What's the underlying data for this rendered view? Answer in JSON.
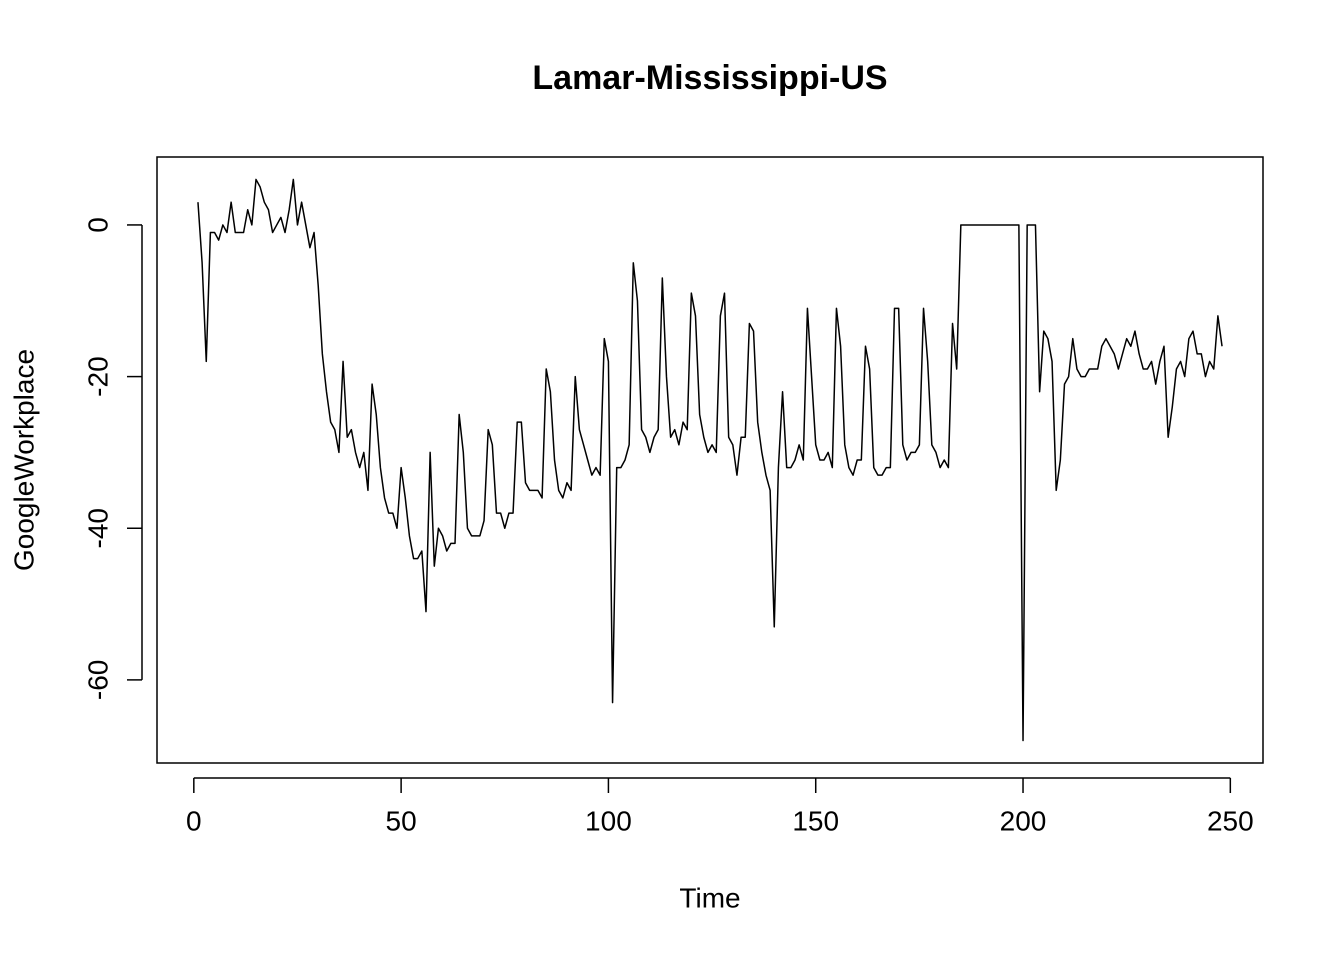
{
  "chart_data": {
    "type": "line",
    "title": "Lamar-Mississippi-US",
    "xlabel": "Time",
    "ylabel": "GoogleWorkplace",
    "color": "#000000",
    "x": [
      1,
      2,
      3,
      4,
      5,
      6,
      7,
      8,
      9,
      10,
      11,
      12,
      13,
      14,
      15,
      16,
      17,
      18,
      19,
      20,
      21,
      22,
      23,
      24,
      25,
      26,
      27,
      28,
      29,
      30,
      31,
      32,
      33,
      34,
      35,
      36,
      37,
      38,
      39,
      40,
      41,
      42,
      43,
      44,
      45,
      46,
      47,
      48,
      49,
      50,
      51,
      52,
      53,
      54,
      55,
      56,
      57,
      58,
      59,
      60,
      61,
      62,
      63,
      64,
      65,
      66,
      67,
      68,
      69,
      70,
      71,
      72,
      73,
      74,
      75,
      76,
      77,
      78,
      79,
      80,
      81,
      82,
      83,
      84,
      85,
      86,
      87,
      88,
      89,
      90,
      91,
      92,
      93,
      94,
      95,
      96,
      97,
      98,
      99,
      100,
      101,
      102,
      103,
      104,
      105,
      106,
      107,
      108,
      109,
      110,
      111,
      112,
      113,
      114,
      115,
      116,
      117,
      118,
      119,
      120,
      121,
      122,
      123,
      124,
      125,
      126,
      127,
      128,
      129,
      130,
      131,
      132,
      133,
      134,
      135,
      136,
      137,
      138,
      139,
      140,
      141,
      142,
      143,
      144,
      145,
      146,
      147,
      148,
      149,
      150,
      151,
      152,
      153,
      154,
      155,
      156,
      157,
      158,
      159,
      160,
      161,
      162,
      163,
      164,
      165,
      166,
      167,
      168,
      169,
      170,
      171,
      172,
      173,
      174,
      175,
      176,
      177,
      178,
      179,
      180,
      181,
      182,
      183,
      184,
      185,
      186,
      187,
      188,
      189,
      190,
      191,
      192,
      193,
      194,
      195,
      196,
      197,
      198,
      199,
      200,
      201,
      202,
      203,
      204,
      205,
      206,
      207,
      208,
      209,
      210,
      211,
      212,
      213,
      214,
      215,
      216,
      217,
      218,
      219,
      220,
      221,
      222,
      223,
      224,
      225,
      226,
      227,
      228,
      229,
      230,
      231,
      232,
      233,
      234,
      235,
      236,
      237,
      238,
      239,
      240,
      241,
      242,
      243,
      244,
      245,
      246,
      247,
      248
    ],
    "values": [
      3,
      -5,
      -18,
      -1,
      -1,
      -2,
      0,
      -1,
      3,
      -1,
      -1,
      -1,
      2,
      0,
      6,
      5,
      3,
      2,
      -1,
      0,
      1,
      -1,
      2,
      6,
      0,
      3,
      0,
      -3,
      -1,
      -8,
      -17,
      -22,
      -26,
      -27,
      -30,
      -18,
      -28,
      -27,
      -30,
      -32,
      -30,
      -35,
      -21,
      -25,
      -32,
      -36,
      -38,
      -38,
      -40,
      -32,
      -36,
      -41,
      -44,
      -44,
      -43,
      -51,
      -30,
      -45,
      -40,
      -41,
      -43,
      -42,
      -42,
      -25,
      -30,
      -40,
      -41,
      -41,
      -41,
      -39,
      -27,
      -29,
      -38,
      -38,
      -40,
      -38,
      -38,
      -26,
      -26,
      -34,
      -35,
      -35,
      -35,
      -36,
      -19,
      -22,
      -31,
      -35,
      -36,
      -34,
      -35,
      -20,
      -27,
      -29,
      -31,
      -33,
      -32,
      -33,
      -15,
      -18,
      -63,
      -32,
      -32,
      -31,
      -29,
      -5,
      -10,
      -27,
      -28,
      -30,
      -28,
      -27,
      -7,
      -20,
      -28,
      -27,
      -29,
      -26,
      -27,
      -9,
      -12,
      -25,
      -28,
      -30,
      -29,
      -30,
      -12,
      -9,
      -28,
      -29,
      -33,
      -28,
      -28,
      -13,
      -14,
      -26,
      -30,
      -33,
      -35,
      -53,
      -32,
      -22,
      -32,
      -32,
      -31,
      -29,
      -31,
      -11,
      -20,
      -29,
      -31,
      -31,
      -30,
      -32,
      -11,
      -16,
      -29,
      -32,
      -33,
      -31,
      -31,
      -16,
      -19,
      -32,
      -33,
      -33,
      -32,
      -32,
      -11,
      -11,
      -29,
      -31,
      -30,
      -30,
      -29,
      -11,
      -18,
      -29,
      -30,
      -32,
      -31,
      -32,
      -13,
      -19,
      0,
      0,
      0,
      0,
      0,
      0,
      0,
      0,
      0,
      0,
      0,
      0,
      0,
      0,
      0,
      -68,
      0,
      0,
      0,
      -22,
      -14,
      -15,
      -18,
      -35,
      -31,
      -21,
      -20,
      -15,
      -19,
      -20,
      -20,
      -19,
      -19,
      -19,
      -16,
      -15,
      -16,
      -17,
      -19,
      -17,
      -15,
      -16,
      -14,
      -17,
      -19,
      -19,
      -18,
      -21,
      -18,
      -16,
      -28,
      -24,
      -19,
      -18,
      -20,
      -15,
      -14,
      -17,
      -17,
      -20,
      -18,
      -19,
      -12,
      -16
    ],
    "xlim": [
      -8.88,
      257.88
    ],
    "ylim": [
      -70.96,
      8.96
    ],
    "xticks": [
      0,
      50,
      100,
      150,
      200,
      250
    ],
    "yticks": [
      -60,
      -40,
      -20,
      0
    ]
  }
}
